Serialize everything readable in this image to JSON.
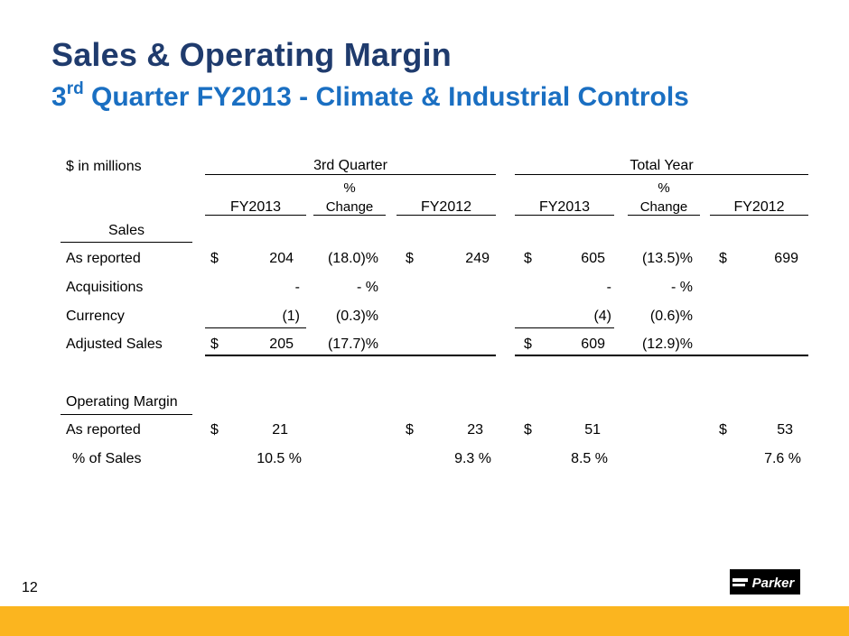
{
  "header": {
    "title": "Sales & Operating Margin",
    "subtitle_pre": "3",
    "subtitle_sup": "rd",
    "subtitle_post": " Quarter FY2013 - Climate & Industrial Controls"
  },
  "table": {
    "units_label": "$  in millions",
    "group_q3": "3rd Quarter",
    "group_year": "Total Year",
    "col_fy2013": "FY2013",
    "col_pct_top": "%",
    "col_pct_bottom": "Change",
    "col_fy2012": "FY2012",
    "sales_section": "Sales",
    "rows": {
      "as_reported": {
        "label": "As reported",
        "q_cur": "204",
        "q_chg": "(18.0)%",
        "q_prev": "249",
        "y_cur": "605",
        "y_chg": "(13.5)%",
        "y_prev": "699"
      },
      "acquisitions": {
        "label": "Acquisitions",
        "q_cur": "-",
        "q_chg": "- %",
        "y_cur": "-",
        "y_chg": "- %"
      },
      "currency": {
        "label": "Currency",
        "q_cur": "(1)",
        "q_chg": "(0.3)%",
        "y_cur": "(4)",
        "y_chg": "(0.6)%"
      },
      "adjusted_sales": {
        "label": "Adjusted Sales",
        "q_cur": "205",
        "q_chg": "(17.7)%",
        "y_cur": "609",
        "y_chg": "(12.9)%"
      }
    },
    "margin_section": "Operating Margin",
    "margin_rows": {
      "as_reported": {
        "label": "As reported",
        "q_cur": "21",
        "q_prev": "23",
        "y_cur": "51",
        "y_prev": "53"
      },
      "pct_sales": {
        "label": "% of Sales",
        "q_cur": "10.5 %",
        "q_prev": "9.3 %",
        "y_cur": "8.5 %",
        "y_prev": "7.6 %"
      }
    },
    "dollar": "$"
  },
  "footer": {
    "page_number": "12",
    "logo_text": "Parker"
  },
  "colors": {
    "title": "#1f3b6d",
    "subtitle": "#1a6fc2",
    "bottom_bar": "#fbb51f"
  }
}
